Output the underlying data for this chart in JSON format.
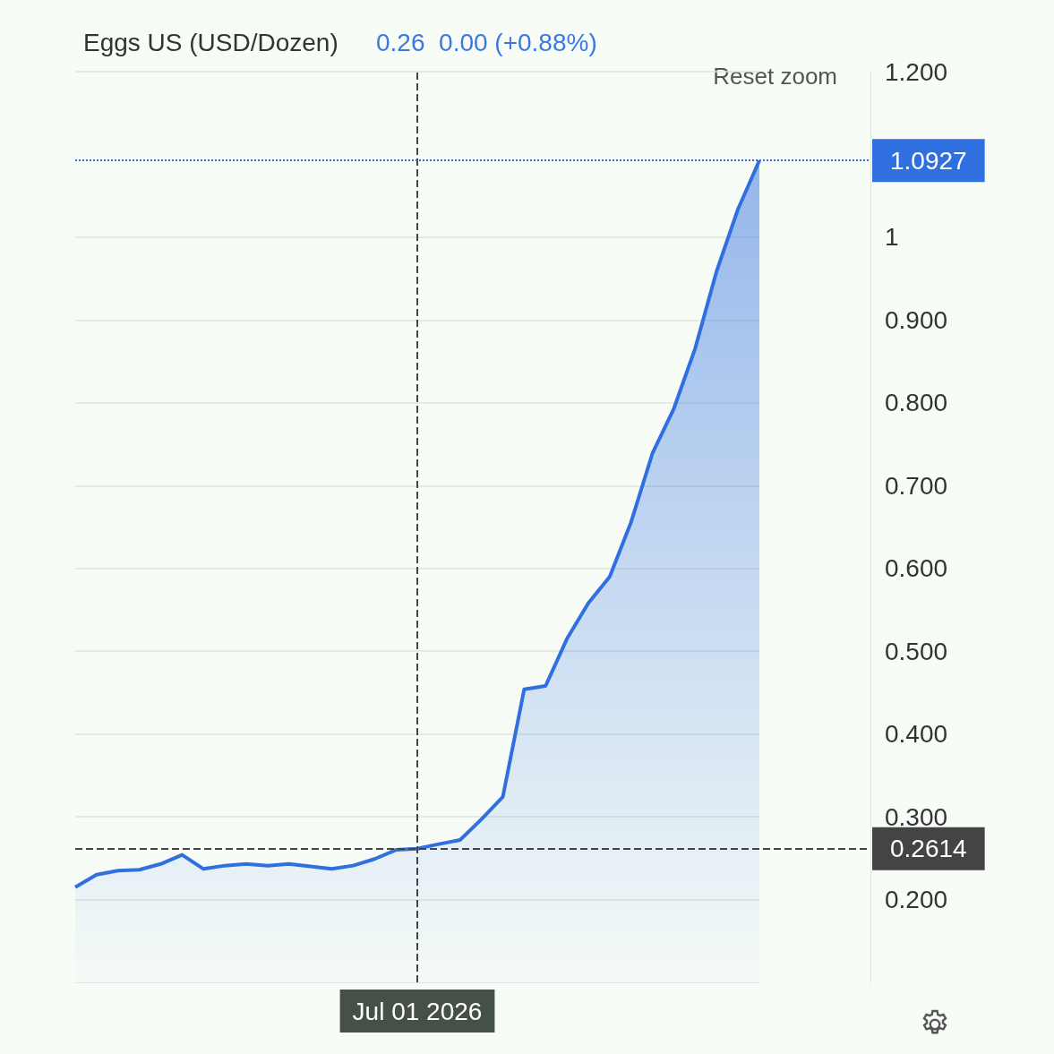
{
  "chart_data": {
    "type": "area",
    "title": "Eggs US (USD/Dozen)",
    "subtitle": "0.26  0.00 (+0.88%)",
    "annotations": [
      "Reset zoom"
    ],
    "categories": [
      null,
      null,
      null,
      null,
      null,
      null,
      null,
      null,
      null,
      null,
      null,
      null,
      null,
      null,
      null,
      null,
      "Jul 01 2026",
      null,
      null,
      null,
      null,
      null,
      null,
      null,
      null,
      null,
      null,
      null,
      null,
      null,
      null,
      null,
      null
    ],
    "series": [
      {
        "color": "#2f6fdf",
        "values": [
          0.215,
          0.23,
          0.235,
          0.236,
          0.243,
          0.254,
          0.237,
          0.241,
          0.243,
          0.241,
          0.243,
          0.24,
          0.237,
          0.241,
          0.249,
          0.26,
          0.2614,
          0.267,
          0.272,
          0.297,
          0.324,
          0.454,
          0.458,
          0.515,
          0.558,
          0.59,
          0.656,
          0.739,
          0.793,
          0.866,
          0.959,
          1.034,
          1.0927
        ]
      }
    ],
    "ylim": [
      0.1,
      1.2
    ],
    "yticks": [
      {
        "value": 0.2,
        "label": "0.200"
      },
      {
        "value": 0.3,
        "label": "0.300"
      },
      {
        "value": 0.4,
        "label": "0.400"
      },
      {
        "value": 0.5,
        "label": "0.500"
      },
      {
        "value": 0.6,
        "label": "0.600"
      },
      {
        "value": 0.7,
        "label": "0.700"
      },
      {
        "value": 0.8,
        "label": "0.800"
      },
      {
        "value": 0.9,
        "label": "0.900"
      },
      1,
      {
        "value": 1.2,
        "label": "1.200"
      }
    ],
    "grid": "y",
    "marker": "none",
    "ref_lines": [
      {
        "axis": "x",
        "value": "Jul 01 2026",
        "label": null,
        "color": "#444444",
        "line_style": "dashed"
      },
      {
        "axis": "y",
        "value": 0.2614,
        "label": "0.2614",
        "color": "#444444",
        "line_style": "dashed"
      },
      {
        "axis": "y",
        "value": 1.0927,
        "label": "1.0927",
        "color": "#2f6fdf",
        "line_style": "dotted"
      }
    ]
  }
}
